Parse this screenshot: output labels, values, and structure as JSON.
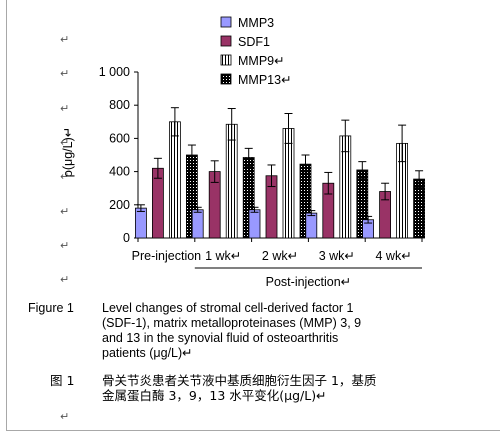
{
  "chart_data": {
    "type": "bar",
    "categories": [
      "Pre-injection",
      "1 wk",
      "2 wk",
      "3 wk",
      "4 wk"
    ],
    "series": [
      {
        "name": "MMP3",
        "values": [
          180,
          170,
          170,
          150,
          110
        ],
        "errors": [
          20,
          15,
          15,
          15,
          20
        ],
        "color": "#9999ff",
        "pattern": "solid"
      },
      {
        "name": "SDF1",
        "values": [
          420,
          400,
          375,
          330,
          280
        ],
        "errors": [
          60,
          65,
          65,
          65,
          50
        ],
        "color": "#993366",
        "pattern": "solid"
      },
      {
        "name": "MMP9",
        "values": [
          700,
          685,
          660,
          615,
          570
        ],
        "errors": [
          85,
          95,
          90,
          95,
          110
        ],
        "color": "#ffffff",
        "pattern": "vertical-stripes"
      },
      {
        "name": "MMP13",
        "values": [
          500,
          485,
          445,
          410,
          355
        ],
        "errors": [
          60,
          55,
          55,
          50,
          50
        ],
        "color": "#000000",
        "pattern": "dots"
      }
    ],
    "legend_marks": [
      "",
      "",
      "↵",
      "↵"
    ],
    "ylabel": "ρ(μg/L)",
    "ylabel_mark": "↵",
    "ylim": [
      0,
      1000
    ],
    "yticks": [
      "0",
      "200",
      "400",
      "600",
      "800",
      "1 000"
    ],
    "group_label": "Post-injection↵",
    "legend_position": "top",
    "grid": false
  },
  "tick_label_marks": [
    "",
    "↵",
    "↵",
    "↵",
    "↵"
  ],
  "caption_en": {
    "label": "Figure 1",
    "lines": [
      "Level changes of stromal cell-derived factor 1",
      "(SDF-1), matrix metalloproteinases (MMP) 3, 9",
      "and 13 in the synovial fluid of osteoarthritis",
      "patients (μg/L)↵"
    ]
  },
  "caption_cn": {
    "label": "图 1",
    "lines": [
      "骨关节炎患者关节液中基质细胞衍生因子 1，基质",
      "金属蛋白酶 3，9，13 水平变化(μg/L)↵"
    ]
  },
  "paragraph_mark": "↵"
}
